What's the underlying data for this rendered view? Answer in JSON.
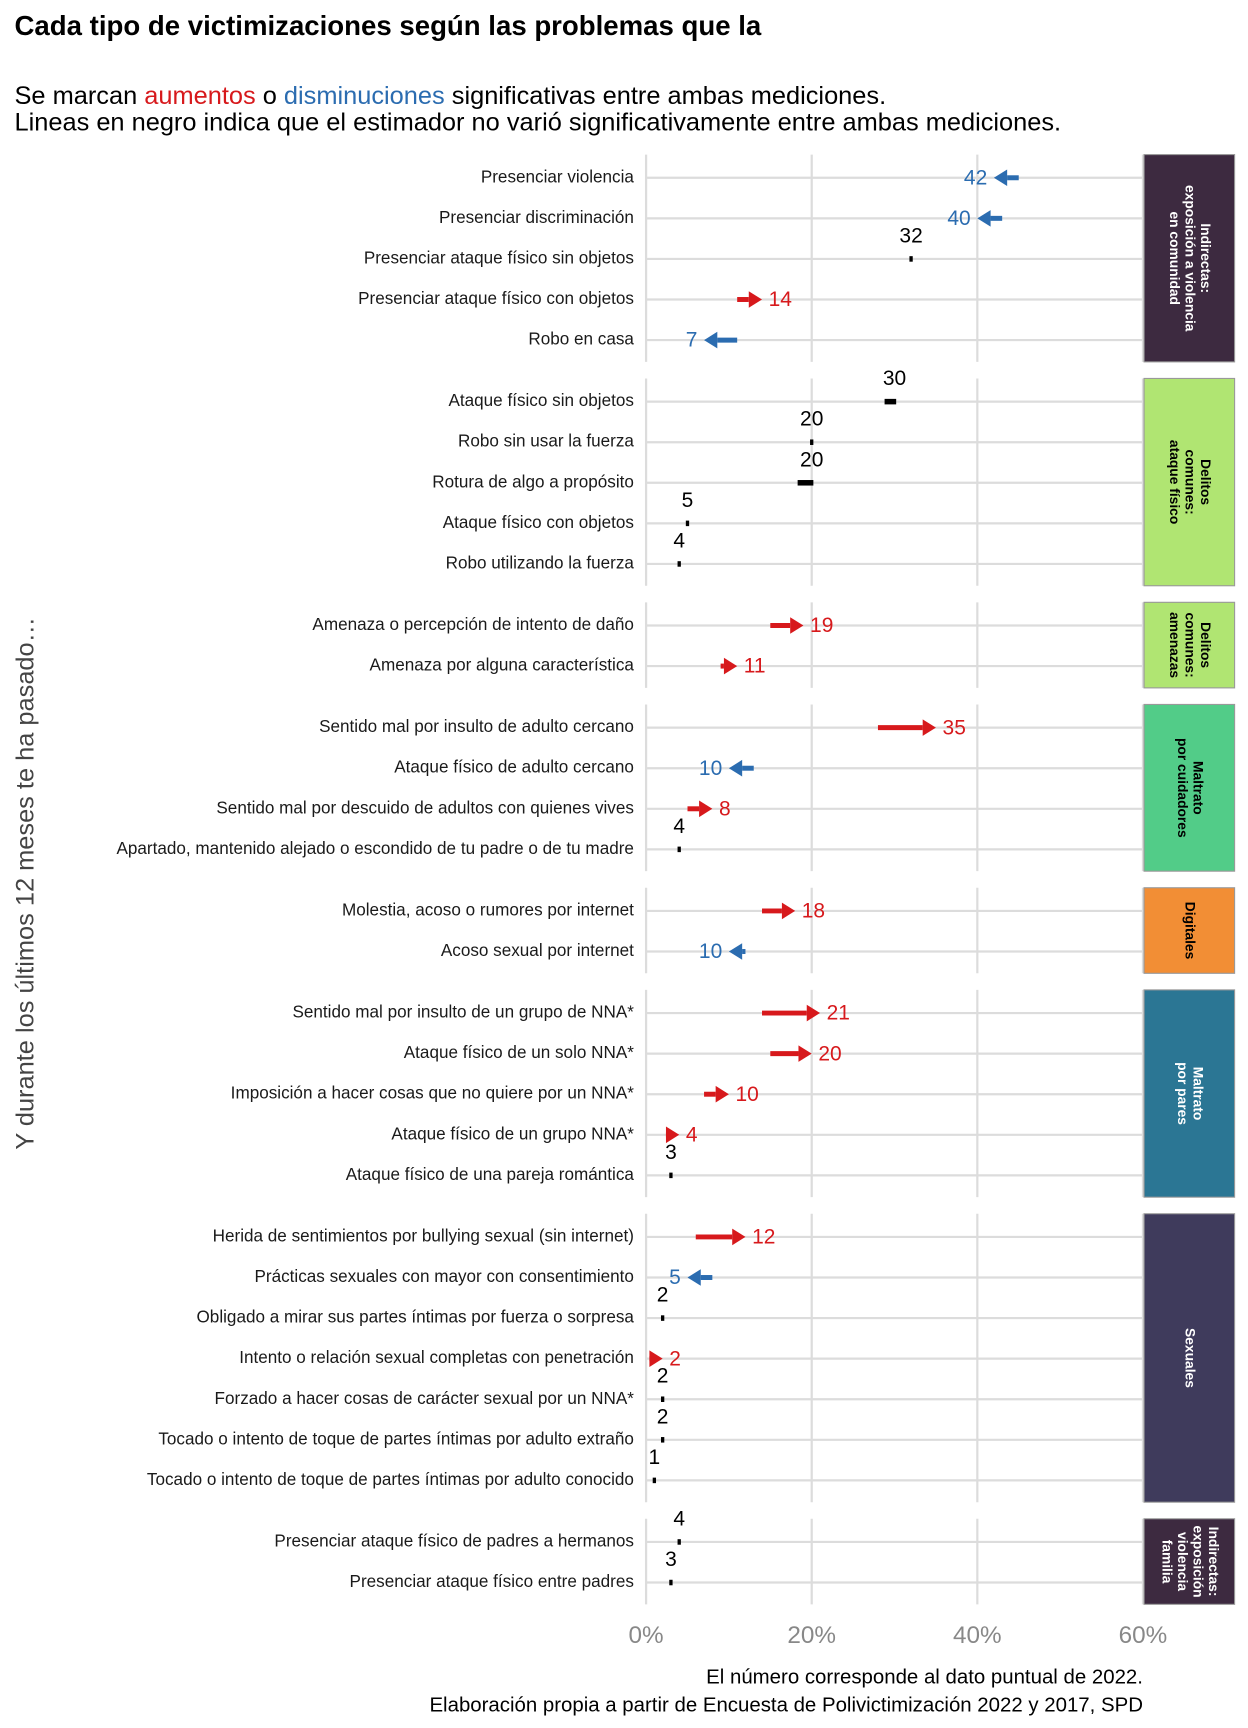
{
  "chart_data": {
    "type": "arrow",
    "title": "Cada tipo de victimizaciones según las problemas que la",
    "subtitle": [
      "Se marcan ",
      "aumentos",
      " o ",
      "disminuciones",
      " significativas entre ambas mediciones."
    ],
    "subtitle2": "Lineas en negro indica que el estimador no varió significativamente entre ambas mediciones.",
    "y_axis_label": "Y durante los últimos 12 meses te ha pasado…",
    "caption": [
      "El número corresponde al dato puntual de 2022.",
      "Elaboración propia a partir de Encuesta de Polivictimización 2022 y 2017, SPD"
    ],
    "xlim": [
      0,
      60
    ],
    "xticks": [
      {
        "value": 0,
        "label": "0%"
      },
      {
        "value": 20,
        "label": "20%"
      },
      {
        "value": 40,
        "label": "40%"
      },
      {
        "value": 60,
        "label": "60%"
      }
    ],
    "increase_color": "#d7191c",
    "decrease_color": "#2b6cb0",
    "neutral_color": "#000000",
    "panels": [
      {
        "label": [
          "Indirectas:",
          "exposición a violencia",
          "en comunidad"
        ],
        "color": "#3d2a40",
        "rows": [
          {
            "category": "Presenciar violencia",
            "start": 45,
            "end": 42,
            "change": "down"
          },
          {
            "category": "Presenciar discriminación",
            "start": 43,
            "end": 40,
            "change": "down"
          },
          {
            "category": "Presenciar ataque físico sin objetos",
            "start": 32,
            "end": 32,
            "change": "none"
          },
          {
            "category": "Presenciar ataque físico con objetos",
            "start": 11,
            "end": 14,
            "change": "up"
          },
          {
            "category": "Robo en casa",
            "start": 11,
            "end": 7,
            "change": "down"
          }
        ]
      },
      {
        "label": [
          "Delitos",
          "comunes:",
          "ataque físico"
        ],
        "color": "#b0e572",
        "rows": [
          {
            "category": "Ataque físico sin objetos",
            "start": 29,
            "end": 30,
            "change": "none"
          },
          {
            "category": "Robo sin usar la fuerza",
            "start": 20,
            "end": 20,
            "change": "none"
          },
          {
            "category": "Rotura de algo a propósito",
            "start": 18.5,
            "end": 20,
            "change": "none"
          },
          {
            "category": "Ataque físico con objetos",
            "start": 5,
            "end": 5,
            "change": "none"
          },
          {
            "category": "Robo utilizando la fuerza",
            "start": 4,
            "end": 4,
            "change": "none"
          }
        ]
      },
      {
        "label": [
          "Delitos",
          "comunes:",
          "amenazas"
        ],
        "color": "#b0e572",
        "rows": [
          {
            "category": "Amenaza o percepción de intento de daño",
            "start": 15,
            "end": 19,
            "change": "up"
          },
          {
            "category": "Amenaza por alguna característica",
            "start": 9,
            "end": 11,
            "change": "up"
          }
        ]
      },
      {
        "label": [
          "Maltrato",
          "por cuidadores"
        ],
        "color": "#52cc88",
        "rows": [
          {
            "category": "Sentido mal por insulto de adulto cercano",
            "start": 28,
            "end": 35,
            "change": "up"
          },
          {
            "category": "Ataque físico de adulto cercano",
            "start": 13,
            "end": 10,
            "change": "down"
          },
          {
            "category": "Sentido mal por descuido de adultos con quienes vives",
            "start": 5,
            "end": 8,
            "change": "up"
          },
          {
            "category": "Apartado, mantenido alejado o escondido de tu padre o de tu madre",
            "start": 4,
            "end": 4,
            "change": "none"
          }
        ]
      },
      {
        "label": [
          "Digitales"
        ],
        "color": "#f28e35",
        "rows": [
          {
            "category": "Molestia, acoso o rumores por internet",
            "start": 14,
            "end": 18,
            "change": "up"
          },
          {
            "category": "Acoso sexual por internet",
            "start": 12,
            "end": 10,
            "change": "down"
          }
        ]
      },
      {
        "label": [
          "Maltrato",
          "por pares"
        ],
        "color": "#2b7694",
        "rows": [
          {
            "category": "Sentido mal por insulto de un grupo de NNA*",
            "start": 14,
            "end": 21,
            "change": "up"
          },
          {
            "category": "Ataque físico de un solo NNA*",
            "start": 15,
            "end": 20,
            "change": "up"
          },
          {
            "category": "Imposición a hacer cosas que no quiere por un NNA*",
            "start": 7,
            "end": 10,
            "change": "up"
          },
          {
            "category": "Ataque físico de un grupo NNA*",
            "start": 3,
            "end": 4,
            "change": "up"
          },
          {
            "category": "Ataque físico de una pareja romántica",
            "start": 3,
            "end": 3,
            "change": "none"
          }
        ]
      },
      {
        "label": [
          "Sexuales"
        ],
        "color": "#3f3b5c",
        "rows": [
          {
            "category": "Herida de sentimientos por bullying sexual (sin internet)",
            "start": 6,
            "end": 12,
            "change": "up"
          },
          {
            "category": "Prácticas sexuales con mayor con consentimiento",
            "start": 8,
            "end": 5,
            "change": "down"
          },
          {
            "category": "Obligado a mirar sus partes íntimas por fuerza o sorpresa",
            "start": 2,
            "end": 2,
            "change": "none"
          },
          {
            "category": "Intento o relación sexual completas con penetración",
            "start": 1,
            "end": 2,
            "change": "up"
          },
          {
            "category": "Forzado a hacer cosas de carácter sexual por un NNA*",
            "start": 2,
            "end": 2,
            "change": "none"
          },
          {
            "category": "Tocado o intento de toque de partes íntimas por adulto extraño",
            "start": 2,
            "end": 2,
            "change": "none"
          },
          {
            "category": "Tocado o intento de toque de partes íntimas por adulto conocido",
            "start": 1,
            "end": 1,
            "change": "none"
          }
        ]
      },
      {
        "label": [
          "Indirectas:",
          "exposición",
          "violencia",
          "familia"
        ],
        "color": "#3d2a40",
        "rows": [
          {
            "category": "Presenciar ataque físico de padres a hermanos",
            "start": 4,
            "end": 4,
            "change": "none"
          },
          {
            "category": "Presenciar ataque físico entre padres",
            "start": 3,
            "end": 3,
            "change": "none"
          }
        ]
      }
    ]
  }
}
